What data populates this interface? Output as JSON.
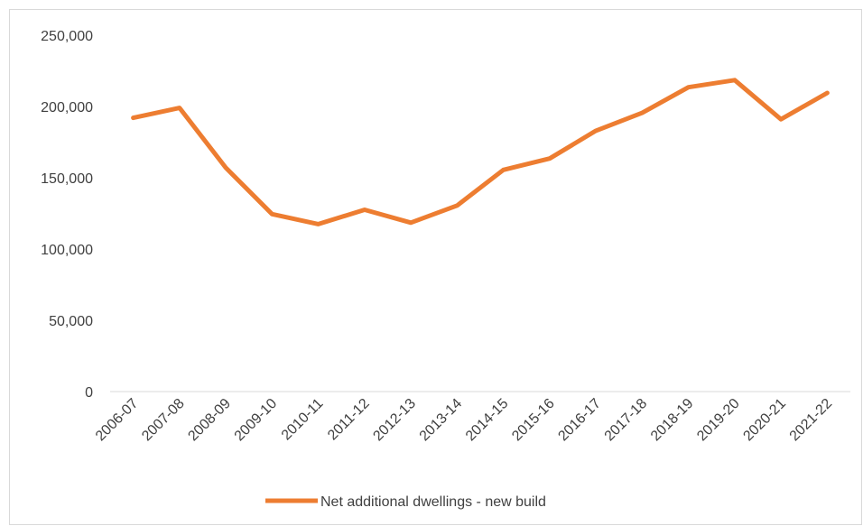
{
  "chart_data": {
    "type": "line",
    "categories": [
      "2006-07",
      "2007-08",
      "2008-09",
      "2009-10",
      "2010-11",
      "2011-12",
      "2012-13",
      "2013-14",
      "2014-15",
      "2015-16",
      "2016-17",
      "2017-18",
      "2018-19",
      "2019-20",
      "2020-21",
      "2021-22"
    ],
    "series": [
      {
        "name": "Net additional dwellings - new build",
        "color": "#ed7d31",
        "values": [
          192000,
          199000,
          157000,
          124500,
          117500,
          127500,
          118500,
          130500,
          155500,
          163500,
          183000,
          195500,
          213500,
          218500,
          191000,
          209500
        ]
      }
    ],
    "y_ticks": [
      "0",
      "50,000",
      "100,000",
      "150,000",
      "200,000",
      "250,000"
    ],
    "ylim": [
      0,
      250000
    ],
    "grid": false,
    "legend_position": "bottom",
    "title": "",
    "xlabel": "",
    "ylabel": ""
  }
}
